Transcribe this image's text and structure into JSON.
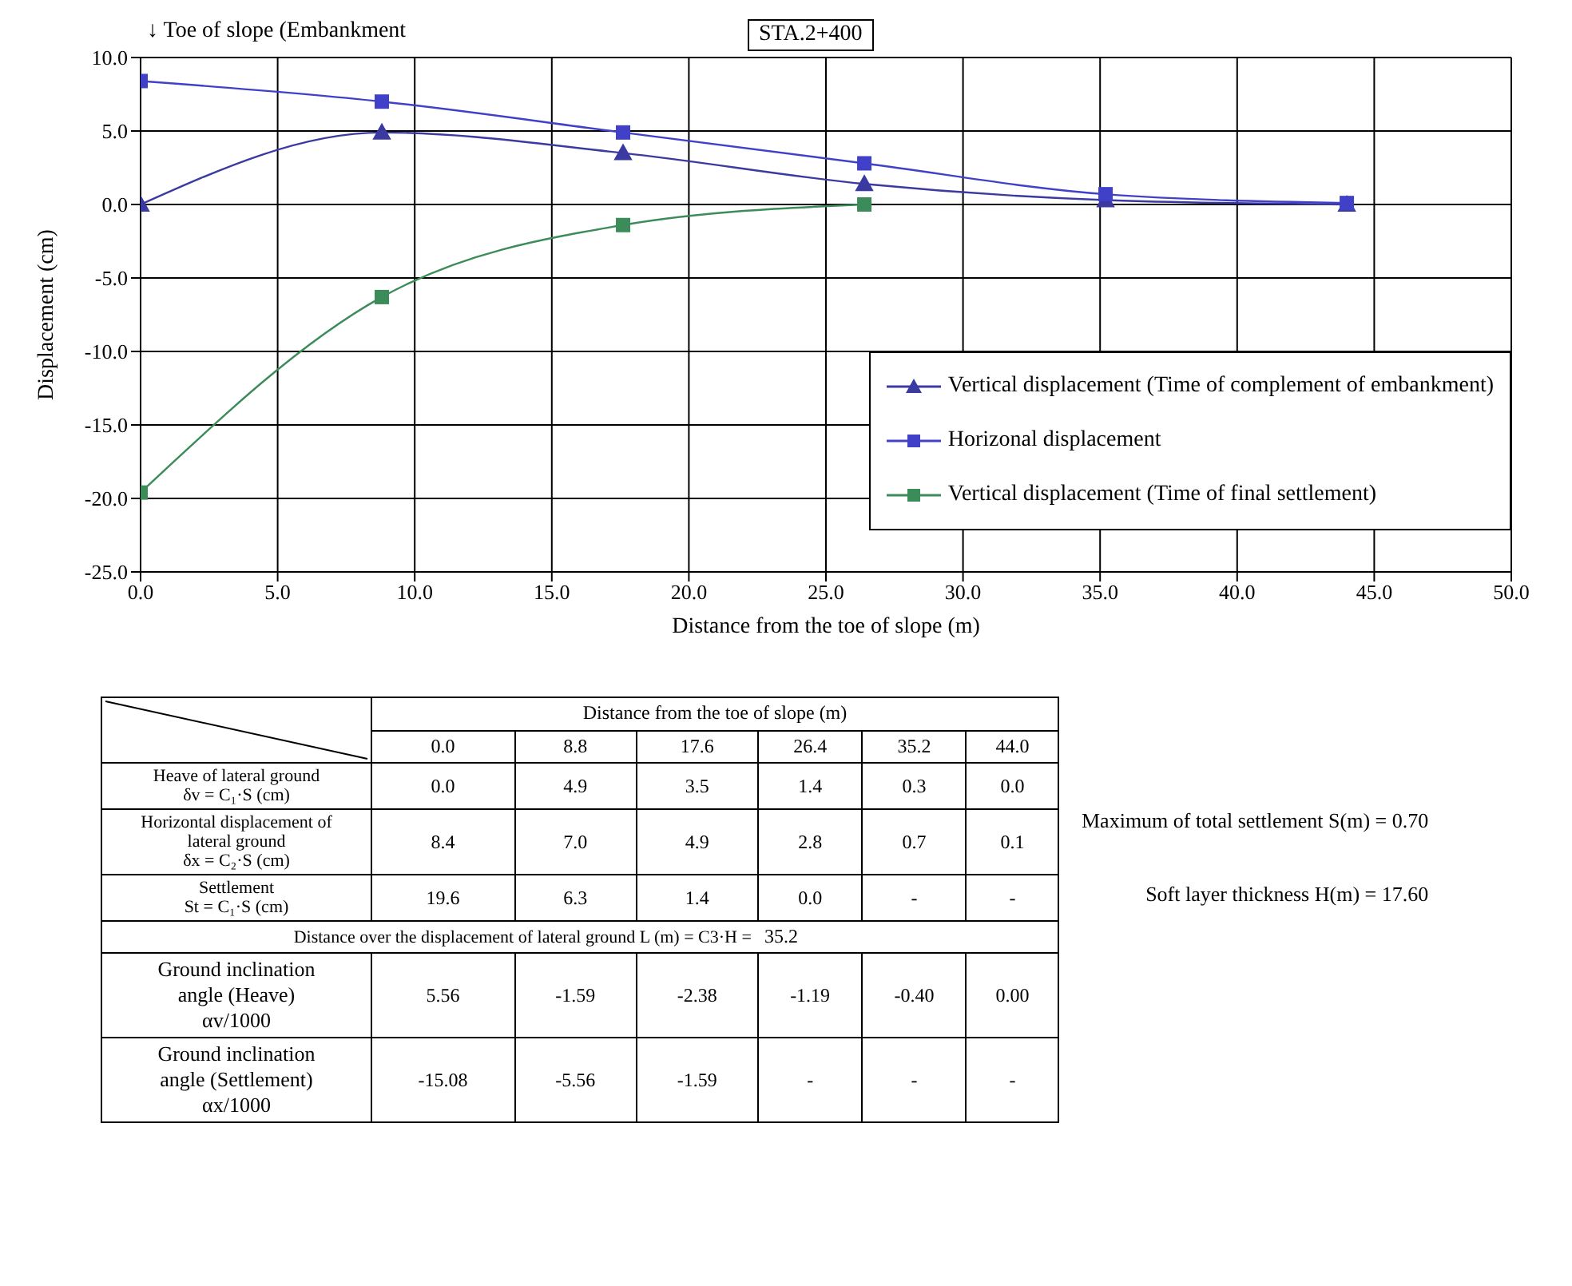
{
  "chart_data": {
    "type": "line",
    "xlabel": "Distance from the toe of slope (m)",
    "ylabel": "Displacement (cm)",
    "xlim": [
      0,
      50
    ],
    "xticks": [
      {
        "value": 0,
        "label": "0.0"
      },
      {
        "value": 5,
        "label": "5.0"
      },
      {
        "value": 10,
        "label": "10.0"
      },
      {
        "value": 15,
        "label": "15.0"
      },
      {
        "value": 20,
        "label": "20.0"
      },
      {
        "value": 25,
        "label": "25.0"
      },
      {
        "value": 30,
        "label": "30.0"
      },
      {
        "value": 35,
        "label": "35.0"
      },
      {
        "value": 40,
        "label": "40.0"
      },
      {
        "value": 45,
        "label": "45.0"
      },
      {
        "value": 50,
        "label": "50.0"
      }
    ],
    "ylim": [
      -25,
      10
    ],
    "yticks": [
      {
        "value": -25,
        "label": "-25.0"
      },
      {
        "value": -20,
        "label": "-20.0"
      },
      {
        "value": -15,
        "label": "-15.0"
      },
      {
        "value": -10,
        "label": "-10.0"
      },
      {
        "value": -5,
        "label": "-5.0"
      },
      {
        "value": 0,
        "label": "0.0"
      },
      {
        "value": 5,
        "label": "5.0"
      },
      {
        "value": 10,
        "label": "10.0"
      }
    ],
    "grid": true,
    "legend": "bottom right",
    "series": [
      {
        "name": "Vertical displacement (Time of complement of embankment)",
        "color": "#3a3aa0",
        "marker": "triangle",
        "x": [
          0,
          8.8,
          17.6,
          26.4,
          35.2,
          44
        ],
        "values": [
          0,
          4.9,
          3.5,
          1.4,
          0.3,
          0
        ]
      },
      {
        "name": "Horizonal displacement",
        "color": "#4040c8",
        "marker": "square",
        "x": [
          0,
          8.8,
          17.6,
          26.4,
          35.2,
          44
        ],
        "values": [
          8.4,
          7,
          4.9,
          2.8,
          0.7,
          0.1
        ]
      },
      {
        "name": "Vertical displacement (Time of final settlement)",
        "color": "#3c8c5a",
        "marker": "square",
        "x": [
          0,
          8.8,
          17.6,
          26.4
        ],
        "values": [
          -19.6,
          -6.3,
          -1.4,
          0
        ]
      }
    ],
    "annotations": [
      "↓ Toe of slope (Embankment",
      "STA.2+400",
      "Distance from the toe of slope (m)",
      "0.0",
      "8.8",
      "17.6",
      "26.4",
      "35.2",
      "44.0",
      "Heave of lateral ground\nδv = C₁·S (cm)",
      "0.0",
      "4.9",
      "3.5",
      "1.4",
      "0.3",
      "0.0",
      "Horizontal displacement of\nlateral ground\nδx = C₂·S (cm)",
      "8.4",
      "7.0",
      "4.9",
      "2.8",
      "0.7",
      "0.1",
      "Settlement\nSt = C₁·S (cm)",
      "19.6",
      "6.3",
      "1.4",
      "0.0",
      "-",
      "-",
      "Distance over the  displacement of lateral ground  L (m) = C3·H =",
      "35.2",
      "Ground inclination\nangle (Heave)\nαv/1000",
      "5.56",
      "-1.59",
      "-2.38",
      "-1.19",
      "-0.40",
      "0.00",
      "Ground inclination\nangle (Settlement)\nαx/1000",
      "-15.08",
      "-5.56",
      "-1.59",
      "-",
      "-",
      "-",
      "Maximum of total settlement  S(m) =  0.70",
      "Soft layer thickness  H(m) = 17.60"
    ]
  }
}
